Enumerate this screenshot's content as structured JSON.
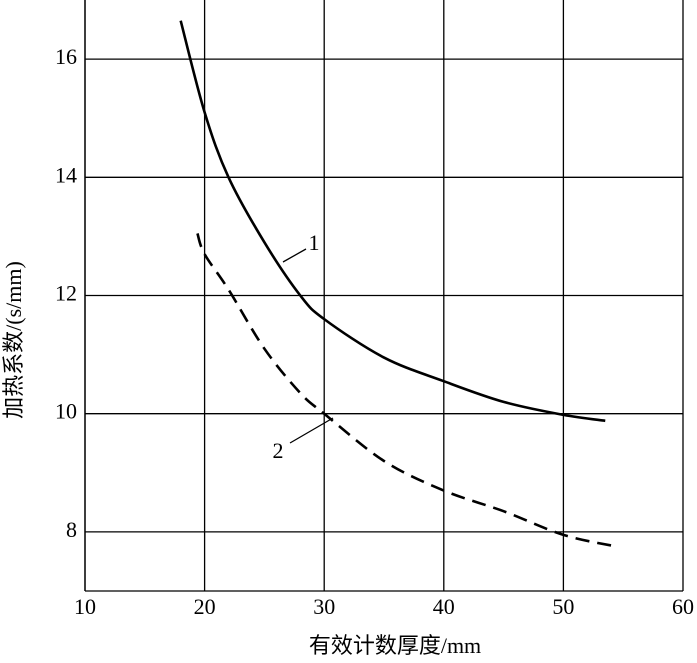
{
  "chart_data": {
    "type": "line",
    "xlabel": "有效计数厚度/mm",
    "ylabel": "加热系数/(s/mm)",
    "xlim": [
      10,
      60
    ],
    "xticks": [
      10,
      20,
      30,
      40,
      50,
      60
    ],
    "ylim": [
      7,
      17
    ],
    "yticks": [
      8,
      10,
      12,
      14,
      16
    ],
    "grid": true,
    "series": [
      {
        "name": "1",
        "color": "#000000",
        "style": "solid",
        "x": [
          18,
          20,
          22,
          25,
          28,
          30,
          35,
          40,
          45,
          50,
          53.5
        ],
        "values": [
          16.65,
          15.1,
          14.0,
          12.9,
          12.0,
          11.6,
          10.95,
          10.55,
          10.2,
          9.98,
          9.88
        ]
      },
      {
        "name": "2",
        "color": "#000000",
        "style": "dashed",
        "x": [
          19.4,
          20,
          22,
          25,
          28,
          30,
          35,
          40,
          45,
          50,
          54.5
        ],
        "values": [
          13.05,
          12.7,
          12.1,
          11.1,
          10.35,
          10.0,
          9.2,
          8.7,
          8.35,
          7.95,
          7.75
        ]
      }
    ]
  }
}
